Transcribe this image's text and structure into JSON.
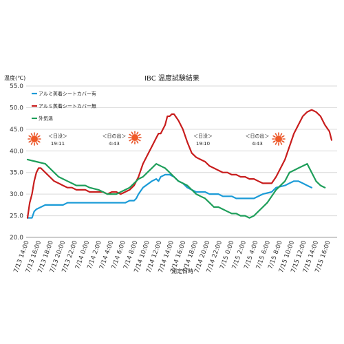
{
  "chart_data": {
    "type": "line",
    "title": "IBC 温度試験結果",
    "ylabel": "温度(℃)",
    "xlabel": "測定日時",
    "ylim": [
      20.0,
      55.0
    ],
    "y_ticks": [
      "20.0",
      "25.0",
      "30.0",
      "35.0",
      "40.0",
      "45.0",
      "50.0",
      "55.0"
    ],
    "grid": true,
    "legend_position": "top-left",
    "x_ticks": [
      "7/13 14:00",
      "7/13 16:00",
      "7/13 18:00",
      "7/13 20:00",
      "7/13 22:00",
      "7/14 0:00",
      "7/14 2:00",
      "7/14 4:00",
      "7/14 6:00",
      "7/14 8:00",
      "7/14 10:00",
      "7/14 12:00",
      "7/14 14:00",
      "7/14 16:00",
      "7/14 18:00",
      "7/14 20:00",
      "7/14 22:00",
      "7/15 0:00",
      "7/15 2:00",
      "7/15 4:00",
      "7/15 6:00",
      "7/15 8:00",
      "7/15 10:00",
      "7/15 12:00",
      "7/15 14:00",
      "7/15 16:00"
    ],
    "x_hours_span": [
      0,
      50
    ],
    "series": [
      {
        "name": "アルミ蒸着シートカバー有",
        "color": "#1b9bd7",
        "points": [
          [
            0,
            24.5
          ],
          [
            1,
            24.5
          ],
          [
            1.5,
            26
          ],
          [
            2,
            26.5
          ],
          [
            3,
            27
          ],
          [
            4,
            27.5
          ],
          [
            6,
            27.5
          ],
          [
            8,
            27.5
          ],
          [
            9,
            28
          ],
          [
            12,
            28
          ],
          [
            16,
            28
          ],
          [
            20,
            28
          ],
          [
            22,
            28
          ],
          [
            23,
            28.5
          ],
          [
            24,
            28.5
          ],
          [
            24.5,
            29
          ],
          [
            25,
            30
          ],
          [
            26,
            31.5
          ],
          [
            28,
            33
          ],
          [
            29,
            33.5
          ],
          [
            29.5,
            33
          ],
          [
            30,
            34
          ],
          [
            31,
            34.5
          ],
          [
            32,
            34.5
          ],
          [
            33,
            34
          ],
          [
            34,
            33
          ],
          [
            35,
            32.5
          ],
          [
            36,
            31.5
          ],
          [
            37,
            31
          ],
          [
            38,
            30.5
          ],
          [
            40,
            30.5
          ],
          [
            41,
            30
          ],
          [
            43,
            30
          ],
          [
            44,
            29.5
          ],
          [
            46,
            29.5
          ],
          [
            47,
            29
          ],
          [
            50,
            29
          ],
          [
            51,
            29
          ],
          [
            52,
            29.5
          ],
          [
            53,
            30
          ],
          [
            55,
            30.5
          ],
          [
            56,
            31.5
          ],
          [
            58,
            32
          ],
          [
            59,
            32.5
          ],
          [
            60,
            33
          ],
          [
            61,
            33
          ],
          [
            62,
            32.5
          ],
          [
            63,
            32
          ],
          [
            64,
            31.5
          ]
        ]
      },
      {
        "name": "アルミ蒸着シートカバー無",
        "color": "#c81d1d",
        "points": [
          [
            0,
            24.5
          ],
          [
            0.5,
            28
          ],
          [
            1,
            30
          ],
          [
            1.5,
            33
          ],
          [
            2,
            35
          ],
          [
            2.5,
            36
          ],
          [
            3,
            36
          ],
          [
            4,
            35
          ],
          [
            5,
            34
          ],
          [
            6,
            33
          ],
          [
            7,
            32.5
          ],
          [
            8,
            32
          ],
          [
            9,
            31.5
          ],
          [
            10,
            31.5
          ],
          [
            11,
            31
          ],
          [
            13,
            31
          ],
          [
            14,
            30.5
          ],
          [
            15,
            30.5
          ],
          [
            16,
            30.5
          ],
          [
            17,
            30.5
          ],
          [
            18,
            30
          ],
          [
            19,
            30.5
          ],
          [
            20,
            30.5
          ],
          [
            21,
            30
          ],
          [
            22,
            30.5
          ],
          [
            23,
            31
          ],
          [
            24,
            32
          ],
          [
            25,
            34
          ],
          [
            26,
            37
          ],
          [
            27,
            39
          ],
          [
            28,
            41
          ],
          [
            29,
            43
          ],
          [
            29.5,
            44
          ],
          [
            30,
            44
          ],
          [
            31,
            46
          ],
          [
            31.5,
            48
          ],
          [
            32,
            48
          ],
          [
            32.5,
            48.5
          ],
          [
            33,
            48.5
          ],
          [
            34,
            47
          ],
          [
            35,
            45
          ],
          [
            36,
            42
          ],
          [
            37,
            39.5
          ],
          [
            38,
            38.5
          ],
          [
            39,
            38
          ],
          [
            40,
            37.5
          ],
          [
            41,
            36.5
          ],
          [
            42,
            36
          ],
          [
            43,
            35.5
          ],
          [
            44,
            35
          ],
          [
            45,
            35
          ],
          [
            46,
            34.5
          ],
          [
            47,
            34.5
          ],
          [
            48,
            34
          ],
          [
            49,
            34
          ],
          [
            50,
            33.5
          ],
          [
            51,
            33.5
          ],
          [
            52,
            33
          ],
          [
            53,
            32.5
          ],
          [
            54,
            32.5
          ],
          [
            55,
            32.5
          ],
          [
            56,
            34
          ],
          [
            57,
            36
          ],
          [
            58,
            38
          ],
          [
            59,
            41
          ],
          [
            60,
            44
          ],
          [
            61,
            46
          ],
          [
            62,
            48
          ],
          [
            63,
            49
          ],
          [
            64,
            49.5
          ],
          [
            65,
            49
          ],
          [
            66,
            48
          ],
          [
            67,
            46
          ],
          [
            68,
            44.5
          ],
          [
            68.5,
            42.5
          ]
        ]
      },
      {
        "name": "外気温",
        "color": "#1e9e5a",
        "points": [
          [
            0,
            38
          ],
          [
            2,
            37.5
          ],
          [
            4,
            37
          ],
          [
            5,
            36
          ],
          [
            6,
            35
          ],
          [
            7,
            34
          ],
          [
            8,
            33.5
          ],
          [
            9,
            33
          ],
          [
            10,
            32.5
          ],
          [
            11,
            32
          ],
          [
            12,
            32
          ],
          [
            13,
            32
          ],
          [
            14,
            31.5
          ],
          [
            16,
            31
          ],
          [
            17,
            30.5
          ],
          [
            18,
            30
          ],
          [
            20,
            30
          ],
          [
            21,
            30.5
          ],
          [
            22,
            31
          ],
          [
            23,
            31.5
          ],
          [
            24,
            32.5
          ],
          [
            25,
            33.5
          ],
          [
            26,
            34
          ],
          [
            27,
            35
          ],
          [
            28,
            36
          ],
          [
            29,
            37
          ],
          [
            30,
            36.5
          ],
          [
            31,
            36
          ],
          [
            32,
            35
          ],
          [
            33,
            34
          ],
          [
            34,
            33
          ],
          [
            35,
            32.5
          ],
          [
            36,
            32
          ],
          [
            37,
            31
          ],
          [
            38,
            30
          ],
          [
            39,
            29.5
          ],
          [
            40,
            29
          ],
          [
            41,
            28
          ],
          [
            42,
            27
          ],
          [
            43,
            27
          ],
          [
            44,
            26.5
          ],
          [
            45,
            26
          ],
          [
            46,
            25.5
          ],
          [
            47,
            25.5
          ],
          [
            48,
            25
          ],
          [
            49,
            25
          ],
          [
            50,
            24.5
          ],
          [
            51,
            25
          ],
          [
            52,
            26
          ],
          [
            53,
            27
          ],
          [
            54,
            28
          ],
          [
            55,
            29.5
          ],
          [
            56,
            31
          ],
          [
            57,
            32
          ],
          [
            58,
            33
          ],
          [
            59,
            35
          ],
          [
            60,
            35.5
          ],
          [
            61,
            36
          ],
          [
            62,
            36.5
          ],
          [
            63,
            37
          ],
          [
            64,
            35
          ],
          [
            65,
            33
          ],
          [
            66,
            32
          ],
          [
            67,
            31.5
          ]
        ]
      }
    ],
    "annotations": [
      {
        "label_key": "sunset",
        "line1": "＜日没＞",
        "line2": "19:11",
        "icon": "moon-icon"
      },
      {
        "label_key": "sunrise",
        "line1": "＜日の出＞",
        "line2": "4:43",
        "icon": "sun-icon"
      },
      {
        "label_key": "sunset",
        "line1": "＜日没＞",
        "line2": "19:10",
        "icon": "moon-icon"
      },
      {
        "label_key": "sunrise",
        "line1": "＜日の出＞",
        "line2": "4:43",
        "icon": "sun-icon"
      }
    ],
    "left_sun_icon": "sun-icon"
  }
}
